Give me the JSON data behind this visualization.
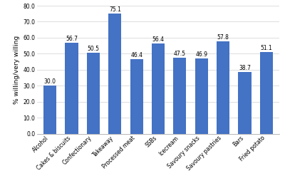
{
  "categories": [
    "Alcohol",
    "Cakes & biscuits",
    "Confectionary",
    "Takeaway",
    "Processed meat",
    "SSBs",
    "Icecream",
    "Savoury snacks",
    "Savoury pastries",
    "Bars",
    "Fried potato"
  ],
  "values": [
    30.0,
    56.7,
    50.5,
    75.1,
    46.4,
    56.4,
    47.5,
    46.9,
    57.8,
    38.7,
    51.1
  ],
  "bar_color": "#4472C4",
  "ylabel": "% willing/very willing",
  "ylim": [
    0,
    80
  ],
  "yticks": [
    0.0,
    10.0,
    20.0,
    30.0,
    40.0,
    50.0,
    60.0,
    70.0,
    80.0
  ],
  "value_fontsize": 5.5,
  "tick_fontsize": 5.5,
  "ylabel_fontsize": 6.5,
  "background_color": "#ffffff",
  "grid_color": "#d0d0d0"
}
